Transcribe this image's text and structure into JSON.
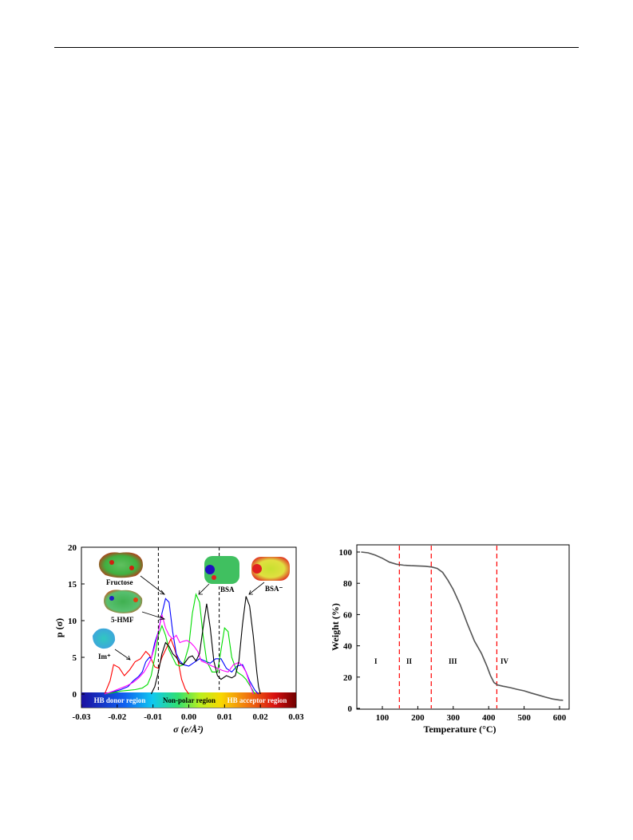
{
  "chart_data": [
    {
      "type": "line",
      "xlabel": "σ (e/Å²)",
      "ylabel": "p (σ)",
      "xlim": [
        -0.03,
        0.03
      ],
      "ylim": [
        -2,
        20
      ],
      "x_ticks": [
        "-0.03",
        "-0.02",
        "-0.01",
        "0.00",
        "0.01",
        "0.02",
        "0.03"
      ],
      "y_ticks": [
        "0",
        "5",
        "10",
        "15",
        "20"
      ],
      "grid": false,
      "vertical_dashed_lines": [
        -0.0085,
        0.0085
      ],
      "region_bar": [
        {
          "label": "HB donor region",
          "label_color": "#ffffff"
        },
        {
          "label": "Non-polar region",
          "label_color": "#000000"
        },
        {
          "label": "HB acceptor region",
          "label_color": "#ffffff"
        }
      ],
      "annotations": [
        "Fructose",
        "5-HMF",
        "Im⁺",
        "BSA",
        "BSA⁻"
      ],
      "series": [
        {
          "color": "#ff0000",
          "points": [
            [
              -0.0235,
              0
            ],
            [
              -0.022,
              1.8
            ],
            [
              -0.021,
              4.0
            ],
            [
              -0.0195,
              3.6
            ],
            [
              -0.018,
              2.5
            ],
            [
              -0.0165,
              3.3
            ],
            [
              -0.015,
              4.4
            ],
            [
              -0.0135,
              4.8
            ],
            [
              -0.012,
              5.8
            ],
            [
              -0.011,
              5.3
            ],
            [
              -0.0095,
              3.7
            ],
            [
              -0.0085,
              3.5
            ],
            [
              -0.0075,
              5.0
            ],
            [
              -0.0065,
              6.0
            ],
            [
              -0.005,
              7.5
            ],
            [
              -0.004,
              6.2
            ],
            [
              -0.003,
              4.5
            ],
            [
              -0.002,
              2.0
            ],
            [
              -0.001,
              0.7
            ],
            [
              0.0,
              0
            ]
          ]
        },
        {
          "color": "#0000ff",
          "points": [
            [
              -0.0235,
              0
            ],
            [
              -0.021,
              0.3
            ],
            [
              -0.019,
              0.6
            ],
            [
              -0.017,
              1.0
            ],
            [
              -0.0155,
              1.8
            ],
            [
              -0.014,
              2.4
            ],
            [
              -0.013,
              3.0
            ],
            [
              -0.012,
              4.4
            ],
            [
              -0.011,
              5.0
            ],
            [
              -0.0105,
              4.8
            ],
            [
              -0.0095,
              7.0
            ],
            [
              -0.0085,
              8.5
            ],
            [
              -0.0075,
              11.0
            ],
            [
              -0.0065,
              13.0
            ],
            [
              -0.0055,
              12.5
            ],
            [
              -0.0045,
              8.5
            ],
            [
              -0.0035,
              5.5
            ],
            [
              -0.0025,
              4.5
            ],
            [
              -0.0015,
              4.0
            ],
            [
              0.0,
              3.8
            ],
            [
              0.0015,
              4.3
            ],
            [
              0.003,
              4.8
            ],
            [
              0.0045,
              4.5
            ],
            [
              0.006,
              4.2
            ],
            [
              0.0075,
              4.8
            ],
            [
              0.009,
              4.8
            ],
            [
              0.0105,
              3.5
            ],
            [
              0.012,
              3.0
            ],
            [
              0.0135,
              3.8
            ],
            [
              0.015,
              4.0
            ],
            [
              0.016,
              3.0
            ],
            [
              0.017,
              1.8
            ],
            [
              0.0185,
              0.5
            ],
            [
              0.0195,
              0
            ]
          ]
        },
        {
          "color": "#00dd00",
          "points": [
            [
              -0.0235,
              0
            ],
            [
              -0.021,
              0.2
            ],
            [
              -0.019,
              0.4
            ],
            [
              -0.017,
              0.5
            ],
            [
              -0.015,
              0.6
            ],
            [
              -0.013,
              0.8
            ],
            [
              -0.0115,
              1.3
            ],
            [
              -0.0105,
              2.5
            ],
            [
              -0.0095,
              5.0
            ],
            [
              -0.0085,
              8.0
            ],
            [
              -0.0075,
              9.3
            ],
            [
              -0.0065,
              8.0
            ],
            [
              -0.0055,
              6.0
            ],
            [
              -0.0045,
              5.0
            ],
            [
              -0.0035,
              4.0
            ],
            [
              -0.0025,
              3.8
            ],
            [
              -0.0015,
              4.0
            ],
            [
              0.0,
              6.5
            ],
            [
              0.001,
              11.0
            ],
            [
              0.002,
              13.6
            ],
            [
              0.003,
              12.5
            ],
            [
              0.004,
              8.0
            ],
            [
              0.005,
              4.5
            ],
            [
              0.0065,
              3.0
            ],
            [
              0.008,
              3.0
            ],
            [
              0.009,
              6.0
            ],
            [
              0.01,
              9.0
            ],
            [
              0.011,
              8.5
            ],
            [
              0.012,
              5.0
            ],
            [
              0.0135,
              3.0
            ],
            [
              0.015,
              2.5
            ],
            [
              0.016,
              2.0
            ],
            [
              0.0175,
              0.8
            ],
            [
              0.0185,
              0
            ]
          ]
        },
        {
          "color": "#ff00ff",
          "points": [
            [
              -0.0235,
              0
            ],
            [
              -0.021,
              0.4
            ],
            [
              -0.019,
              0.8
            ],
            [
              -0.017,
              1.2
            ],
            [
              -0.0155,
              1.6
            ],
            [
              -0.014,
              2.2
            ],
            [
              -0.0125,
              3.0
            ],
            [
              -0.0115,
              3.8
            ],
            [
              -0.0105,
              4.8
            ],
            [
              -0.0095,
              6.5
            ],
            [
              -0.0085,
              8.5
            ],
            [
              -0.0075,
              10.8
            ],
            [
              -0.0065,
              9.0
            ],
            [
              -0.0055,
              8.0
            ],
            [
              -0.0045,
              7.5
            ],
            [
              -0.0035,
              8.0
            ],
            [
              -0.0025,
              7.0
            ],
            [
              -0.0015,
              7.2
            ],
            [
              -0.0005,
              7.3
            ],
            [
              0.0005,
              7.0
            ],
            [
              0.0015,
              6.5
            ],
            [
              0.0025,
              5.8
            ],
            [
              0.0035,
              4.5
            ],
            [
              0.005,
              4.2
            ],
            [
              0.0065,
              3.8
            ],
            [
              0.008,
              3.5
            ],
            [
              0.0095,
              3.2
            ],
            [
              0.011,
              3.0
            ],
            [
              0.0125,
              4.0
            ],
            [
              0.014,
              4.3
            ],
            [
              0.015,
              3.8
            ],
            [
              0.016,
              3.0
            ],
            [
              0.017,
              1.5
            ],
            [
              0.018,
              0
            ]
          ]
        },
        {
          "color": "#000000",
          "points": [
            [
              -0.0105,
              0
            ],
            [
              -0.0095,
              1.0
            ],
            [
              -0.0085,
              3.0
            ],
            [
              -0.0075,
              5.5
            ],
            [
              -0.0065,
              7.0
            ],
            [
              -0.0055,
              6.5
            ],
            [
              -0.0045,
              5.5
            ],
            [
              -0.0035,
              5.0
            ],
            [
              -0.0025,
              4.2
            ],
            [
              -0.0015,
              4.0
            ],
            [
              0.0,
              5.0
            ],
            [
              0.001,
              5.2
            ],
            [
              0.002,
              4.5
            ],
            [
              0.003,
              5.5
            ],
            [
              0.004,
              9.0
            ],
            [
              0.005,
              12.3
            ],
            [
              0.006,
              9.0
            ],
            [
              0.007,
              4.5
            ],
            [
              0.008,
              2.5
            ],
            [
              0.009,
              2.0
            ],
            [
              0.0105,
              2.5
            ],
            [
              0.012,
              2.2
            ],
            [
              0.013,
              2.5
            ],
            [
              0.014,
              4.5
            ],
            [
              0.015,
              9.5
            ],
            [
              0.016,
              13.3
            ],
            [
              0.017,
              12.0
            ],
            [
              0.018,
              8.0
            ],
            [
              0.019,
              3.0
            ],
            [
              0.0195,
              1.0
            ],
            [
              0.02,
              0
            ]
          ]
        }
      ]
    },
    {
      "type": "line",
      "xlabel": "Temperature (°C)",
      "ylabel": "Weight (%)",
      "xlim": [
        25,
        625
      ],
      "ylim": [
        0,
        105
      ],
      "x_ticks": [
        "100",
        "200",
        "300",
        "400",
        "500",
        "600"
      ],
      "y_ticks": [
        "0",
        "20",
        "40",
        "60",
        "80",
        "100"
      ],
      "grid": false,
      "vertical_dashed_lines": [
        148,
        238,
        423
      ],
      "stage_labels": [
        "I",
        "II",
        "III",
        "IV"
      ],
      "series": [
        {
          "color": "#555555",
          "points": [
            [
              40,
              100
            ],
            [
              60,
              99.5
            ],
            [
              80,
              98
            ],
            [
              100,
              96
            ],
            [
              120,
              93.5
            ],
            [
              140,
              92.2
            ],
            [
              160,
              91.6
            ],
            [
              180,
              91.3
            ],
            [
              200,
              91.1
            ],
            [
              220,
              90.9
            ],
            [
              240,
              90.4
            ],
            [
              255,
              89.5
            ],
            [
              270,
              87
            ],
            [
              285,
              82
            ],
            [
              300,
              76
            ],
            [
              320,
              66
            ],
            [
              340,
              54
            ],
            [
              360,
              43
            ],
            [
              380,
              35
            ],
            [
              395,
              27
            ],
            [
              405,
              21
            ],
            [
              415,
              16.5
            ],
            [
              425,
              15
            ],
            [
              440,
              14.2
            ],
            [
              460,
              13.3
            ],
            [
              480,
              12.2
            ],
            [
              500,
              11.2
            ],
            [
              520,
              9.8
            ],
            [
              540,
              8.5
            ],
            [
              560,
              7.2
            ],
            [
              580,
              6
            ],
            [
              600,
              5.3
            ],
            [
              610,
              5.2
            ]
          ]
        }
      ]
    }
  ]
}
